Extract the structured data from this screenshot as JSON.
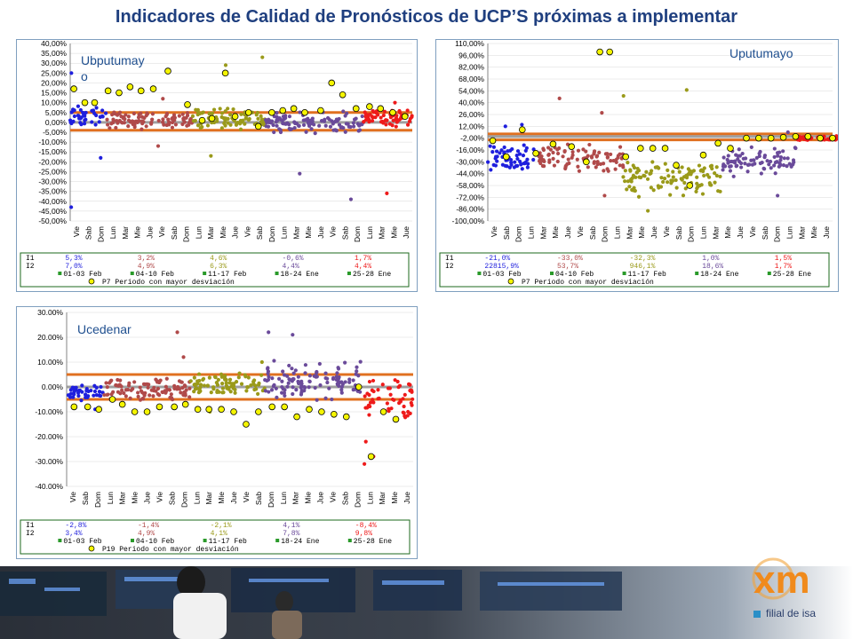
{
  "title": "Indicadores de Calidad de Pronósticos de UCP’S  próximas a implementar",
  "day_labels": [
    "Vie",
    "Sab",
    "Dom",
    "Lun",
    "Mar",
    "Mie",
    "Jue",
    "Vie",
    "Sab",
    "Dom",
    "Lun",
    "Mar",
    "Mie",
    "Jue",
    "Vie",
    "Sab",
    "Dom",
    "Lun",
    "Mar",
    "Mie",
    "Jue",
    "Vie",
    "Sab",
    "Dom",
    "Lun",
    "Mar",
    "Mie",
    "Jue"
  ],
  "colors": {
    "blue": "#1f1fdd",
    "brown": "#b04a4a",
    "olive": "#9a9a1a",
    "purple": "#6a4a9a",
    "red": "#ee1a1a",
    "orange": "#e07020",
    "yellow": "#f5f500",
    "grid": "#d8d8d8",
    "bar": "#8a8a8a"
  },
  "chart_data": [
    {
      "type": "scatter",
      "label": "Ubputumay\no",
      "ylim": [
        -50,
        40
      ],
      "yticks": [
        "40,00%",
        "35,00%",
        "30,00%",
        "25,00%",
        "20,00%",
        "15,00%",
        "10,00%",
        "5,00%",
        "0,00%",
        "-5,00%",
        "-10,00%",
        "-15,00%",
        "-20,00%",
        "-25,00%",
        "-30,00%",
        "-35,00%",
        "-40,00%",
        "-45,00%",
        "-50,00%"
      ],
      "bands": [
        5,
        -4
      ],
      "mean_line": 0,
      "series": [
        {
          "color": "blue",
          "x0": 0,
          "x1": 3,
          "center": 3,
          "spread": 6,
          "out": [
            -43,
            -18,
            25
          ]
        },
        {
          "color": "brown",
          "x0": 3,
          "x1": 10,
          "center": 1,
          "spread": 5,
          "out": [
            -12,
            12
          ]
        },
        {
          "color": "olive",
          "x0": 10,
          "x1": 16,
          "center": 2,
          "spread": 6,
          "out": [
            33,
            29,
            -17
          ]
        },
        {
          "color": "purple",
          "x0": 16,
          "x1": 24,
          "center": 0,
          "spread": 6,
          "out": [
            -39,
            -26
          ]
        },
        {
          "color": "red",
          "x0": 24,
          "x1": 28,
          "center": 2,
          "spread": 5,
          "out": [
            -36,
            10
          ]
        }
      ],
      "markers": [
        [
          0.3,
          17
        ],
        [
          1.2,
          10
        ],
        [
          2.0,
          10
        ],
        [
          3.1,
          16
        ],
        [
          4.0,
          15
        ],
        [
          4.9,
          18
        ],
        [
          5.8,
          16
        ],
        [
          6.8,
          17
        ],
        [
          8.0,
          26
        ],
        [
          9.6,
          9
        ],
        [
          10.8,
          1
        ],
        [
          11.6,
          2
        ],
        [
          12.7,
          25
        ],
        [
          13.5,
          3
        ],
        [
          14.6,
          5
        ],
        [
          15.4,
          -2
        ],
        [
          16.5,
          5
        ],
        [
          17.4,
          6
        ],
        [
          18.3,
          7
        ],
        [
          19.2,
          5
        ],
        [
          20.5,
          6
        ],
        [
          21.4,
          20
        ],
        [
          22.3,
          14
        ],
        [
          23.4,
          7
        ],
        [
          24.5,
          8
        ],
        [
          25.4,
          7
        ],
        [
          26.4,
          5
        ],
        [
          27.4,
          3
        ]
      ],
      "legend": {
        "row1": [
          "5,3%",
          "3,2%",
          "4,6%",
          "-0,6%",
          "1,7%"
        ],
        "row2": [
          "7,0%",
          "4,9%",
          "6,3%",
          "4,4%",
          "4,4%"
        ],
        "row1_label": "I1",
        "row2_label": "I2",
        "periods": [
          "01-03 Feb",
          "04-10 Feb",
          "11-17 Feb",
          "18-24 Ene",
          "25-28 Ene"
        ],
        "note": "P7  Periodo con mayor desviación"
      }
    },
    {
      "type": "scatter",
      "label": "Uputumayo",
      "ylim": [
        -100,
        110
      ],
      "yticks": [
        "110,00%",
        "96,00%",
        "82,00%",
        "68,00%",
        "54,00%",
        "40,00%",
        "26,00%",
        "12,00%",
        "-2,00%",
        "-16,00%",
        "-30,00%",
        "-44,00%",
        "-58,00%",
        "-72,00%",
        "-86,00%",
        "-100,00%"
      ],
      "bands": [
        3,
        -4
      ],
      "mean_line": 0,
      "series": [
        {
          "color": "blue",
          "x0": 0,
          "x1": 4,
          "center": -25,
          "spread": 22,
          "out": [
            14,
            12
          ]
        },
        {
          "color": "brown",
          "x0": 4,
          "x1": 11,
          "center": -25,
          "spread": 18,
          "out": [
            45,
            28,
            -70
          ]
        },
        {
          "color": "olive",
          "x0": 11,
          "x1": 19,
          "center": -50,
          "spread": 22,
          "out": [
            55,
            48,
            -88
          ]
        },
        {
          "color": "purple",
          "x0": 19,
          "x1": 25,
          "center": -30,
          "spread": 18,
          "out": [
            5,
            -70
          ]
        },
        {
          "color": "red",
          "x0": 25,
          "x1": 29,
          "center": -2,
          "spread": 3,
          "out": []
        }
      ],
      "markers": [
        [
          0.4,
          -5
        ],
        [
          1.5,
          -24
        ],
        [
          2.8,
          8
        ],
        [
          3.9,
          -20
        ],
        [
          5.3,
          -9
        ],
        [
          6.8,
          -12
        ],
        [
          8.0,
          -30
        ],
        [
          9.1,
          100
        ],
        [
          9.9,
          100
        ],
        [
          11.2,
          -24
        ],
        [
          12.4,
          -14
        ],
        [
          13.4,
          -14
        ],
        [
          14.4,
          -14
        ],
        [
          15.3,
          -34
        ],
        [
          16.4,
          -58
        ],
        [
          17.5,
          -22
        ],
        [
          18.7,
          -8
        ],
        [
          19.7,
          -14
        ],
        [
          21.0,
          -2
        ],
        [
          22.0,
          -2
        ],
        [
          23.0,
          -2
        ],
        [
          24.0,
          -1
        ],
        [
          25.0,
          0
        ],
        [
          26.0,
          0
        ],
        [
          27.0,
          -2
        ],
        [
          28.0,
          -2
        ]
      ],
      "legend": {
        "row1": [
          "-21,0%",
          "-33,0%",
          "-32,3%",
          "1,0%",
          "1,5%"
        ],
        "row2": [
          "22815,9%",
          "53,7%",
          "946,1%",
          "18,6%",
          "1,7%"
        ],
        "row1_label": "I1",
        "row2_label": "I2",
        "periods": [
          "01-03 Feb",
          "04-10 Feb",
          "11-17 Feb",
          "18-24 Ene",
          "25-28 Ene"
        ],
        "note": "P7  Periodo con mayor desviación"
      }
    },
    {
      "type": "scatter",
      "label": "Ucedenar",
      "ylim": [
        -40,
        30
      ],
      "yticks": [
        "30.00%",
        "20.00%",
        "10.00%",
        "0.00%",
        "-10.00%",
        "-20.00%",
        "-30.00%",
        "-40.00%"
      ],
      "bands": [
        5,
        -5
      ],
      "mean_line": 0,
      "series": [
        {
          "color": "blue",
          "x0": 0,
          "x1": 3,
          "center": -2,
          "spread": 4,
          "out": [
            -9
          ]
        },
        {
          "color": "brown",
          "x0": 3,
          "x1": 10,
          "center": -1,
          "spread": 5,
          "out": [
            12,
            22,
            -10
          ]
        },
        {
          "color": "olive",
          "x0": 10,
          "x1": 16,
          "center": 1,
          "spread": 5,
          "out": [
            10,
            -10
          ]
        },
        {
          "color": "purple",
          "x0": 16,
          "x1": 24,
          "center": 3,
          "spread": 9,
          "out": [
            21,
            22,
            -5
          ]
        },
        {
          "color": "red",
          "x0": 24,
          "x1": 28,
          "center": -5,
          "spread": 9,
          "out": [
            -28,
            -31,
            -22
          ]
        }
      ],
      "markers": [
        [
          0.6,
          -8
        ],
        [
          1.7,
          -8
        ],
        [
          2.6,
          -9
        ],
        [
          3.7,
          -5
        ],
        [
          4.5,
          -7
        ],
        [
          5.5,
          -10
        ],
        [
          6.5,
          -10
        ],
        [
          7.5,
          -8
        ],
        [
          8.7,
          -8
        ],
        [
          9.6,
          -7
        ],
        [
          10.6,
          -9
        ],
        [
          11.5,
          -9
        ],
        [
          12.5,
          -9
        ],
        [
          13.5,
          -10
        ],
        [
          14.5,
          -15
        ],
        [
          15.5,
          -10
        ],
        [
          16.6,
          -8
        ],
        [
          17.6,
          -8
        ],
        [
          18.6,
          -12
        ],
        [
          19.6,
          -9
        ],
        [
          20.6,
          -10
        ],
        [
          21.6,
          -11
        ],
        [
          22.6,
          -12
        ],
        [
          23.6,
          0
        ],
        [
          24.6,
          -28
        ],
        [
          25.6,
          -10
        ],
        [
          26.6,
          -13
        ]
      ],
      "legend": {
        "row1": [
          "-2,8%",
          "-1,4%",
          "-2,1%",
          "4,1%",
          "-8,4%"
        ],
        "row2": [
          "3,4%",
          "4,9%",
          "4,1%",
          "7,8%",
          "9,8%"
        ],
        "row1_label": "I1",
        "row2_label": "I2",
        "periods": [
          "01-03 Feb",
          "04-10 Feb",
          "11-17 Feb",
          "18-24 Ene",
          "25-28 Ene"
        ],
        "note": "P19  Periodo con mayor desviación"
      }
    }
  ],
  "logo": {
    "text": "xm",
    "subtitle": "filial de isa"
  }
}
